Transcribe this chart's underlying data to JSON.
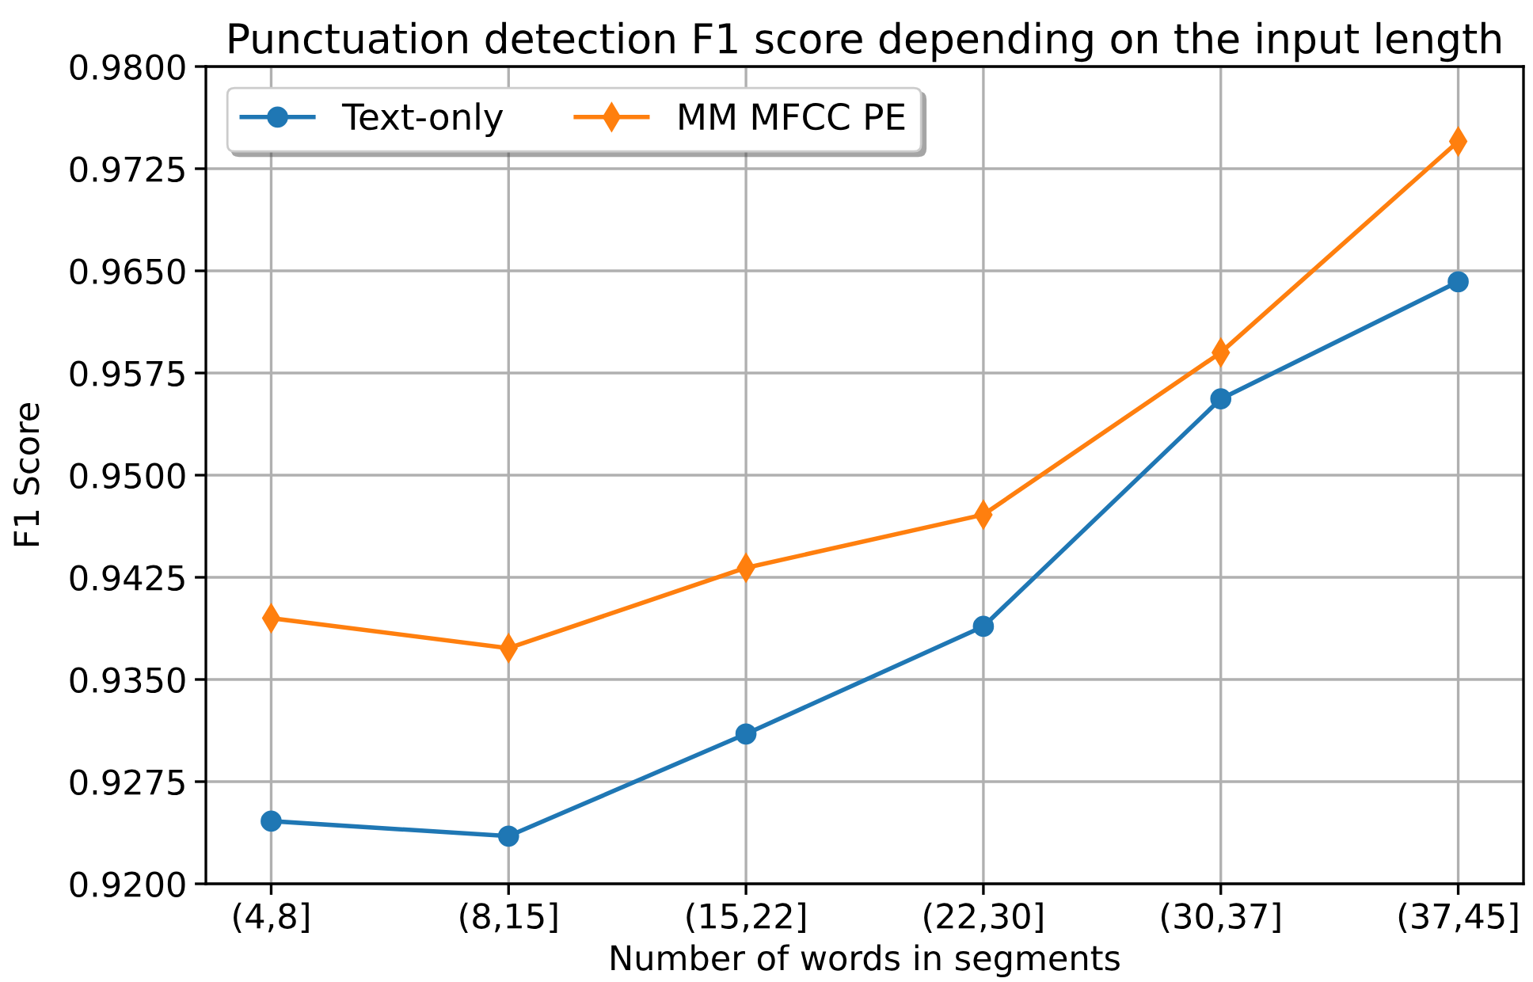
{
  "chart_data": {
    "type": "line",
    "title": "Punctuation detection F1 score depending on the input length",
    "xlabel": "Number of words in segments",
    "ylabel": "F1 Score",
    "categories": [
      "(4,8]",
      "(8,15]",
      "(15,22]",
      "(22,30]",
      "(30,37]",
      "(37,45]"
    ],
    "series": [
      {
        "name": "Text-only",
        "color": "#1f77b4",
        "marker": "circle",
        "values": [
          0.9246,
          0.9235,
          0.931,
          0.9389,
          0.9556,
          0.9642
        ]
      },
      {
        "name": "MM MFCC PE",
        "color": "#ff7f0e",
        "marker": "diamond",
        "values": [
          0.9395,
          0.9373,
          0.9432,
          0.9471,
          0.959,
          0.9745
        ]
      }
    ],
    "ylim": [
      0.92,
      0.98
    ],
    "yticks": [
      {
        "value": 0.92,
        "label": "0.9200"
      },
      {
        "value": 0.9275,
        "label": "0.9275"
      },
      {
        "value": 0.935,
        "label": "0.9350"
      },
      {
        "value": 0.9425,
        "label": "0.9425"
      },
      {
        "value": 0.95,
        "label": "0.9500"
      },
      {
        "value": 0.9575,
        "label": "0.9575"
      },
      {
        "value": 0.965,
        "label": "0.9650"
      },
      {
        "value": 0.9725,
        "label": "0.9725"
      },
      {
        "value": 0.98,
        "label": "0.9800"
      }
    ],
    "grid": true,
    "legend": "top left",
    "line_style": "solid"
  }
}
